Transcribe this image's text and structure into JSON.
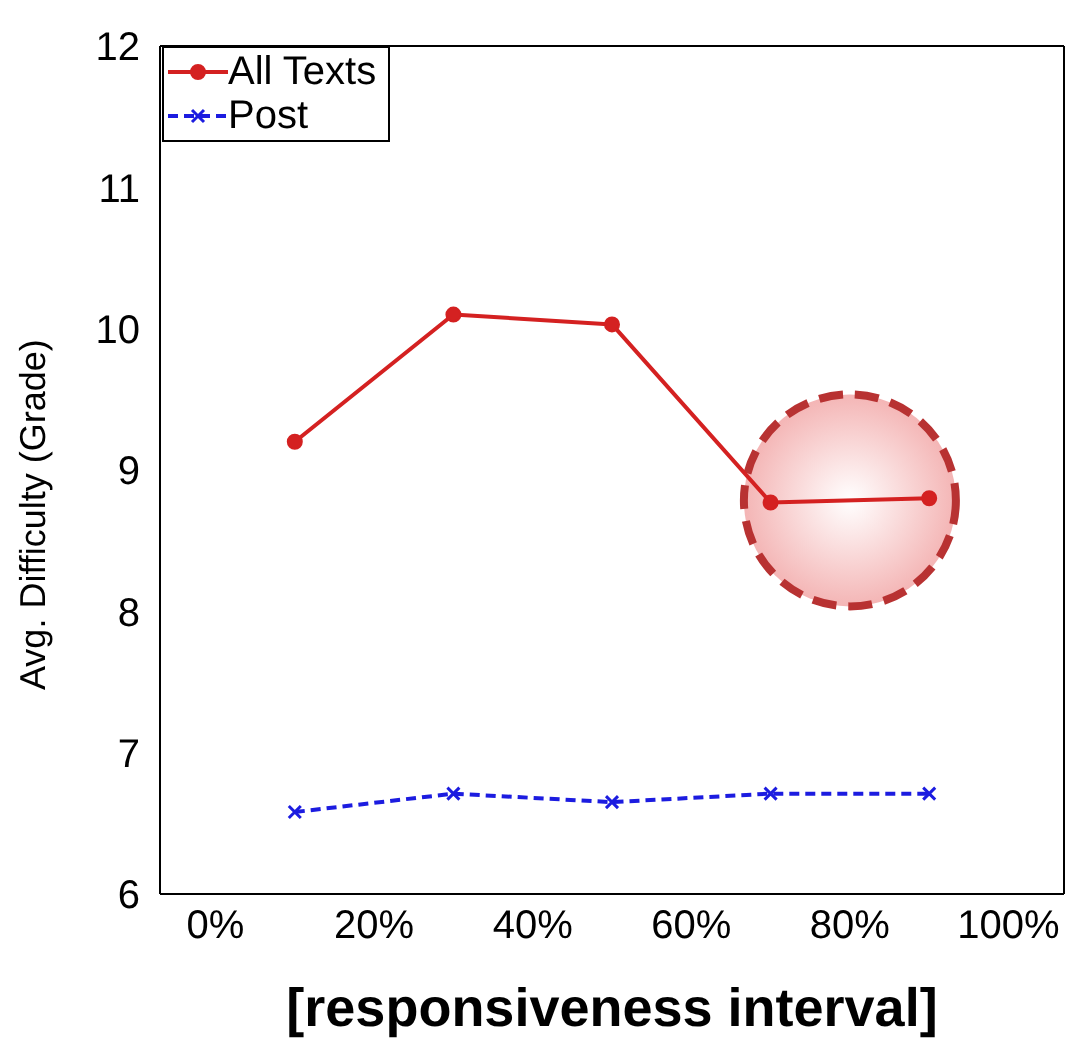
{
  "chart_data": {
    "type": "line",
    "xlabel": "[responsiveness interval]",
    "ylabel": "Avg. Difficulty (Grade)",
    "x": [
      10,
      30,
      50,
      70,
      90
    ],
    "series": [
      {
        "name": "All Texts",
        "color": "#d42121",
        "values": [
          9.2,
          10.1,
          10.03,
          8.77,
          8.8
        ],
        "marker": "circle",
        "line_style": "solid"
      },
      {
        "name": "Post",
        "color": "#1c1ce0",
        "values": [
          6.58,
          6.71,
          6.65,
          6.71,
          6.71
        ],
        "marker": "cross",
        "line_style": "dashed"
      }
    ],
    "xlim": [
      -7,
      107
    ],
    "xticks": [
      {
        "value": 0,
        "label": "0%"
      },
      {
        "value": 20,
        "label": "20%"
      },
      {
        "value": 40,
        "label": "40%"
      },
      {
        "value": 60,
        "label": "60%"
      },
      {
        "value": 80,
        "label": "80%"
      },
      {
        "value": 100,
        "label": "100%"
      }
    ],
    "ylim": [
      6,
      12
    ],
    "yticks": [
      6,
      7,
      8,
      9,
      10,
      11,
      12
    ],
    "grid": false,
    "legend": "top left"
  }
}
